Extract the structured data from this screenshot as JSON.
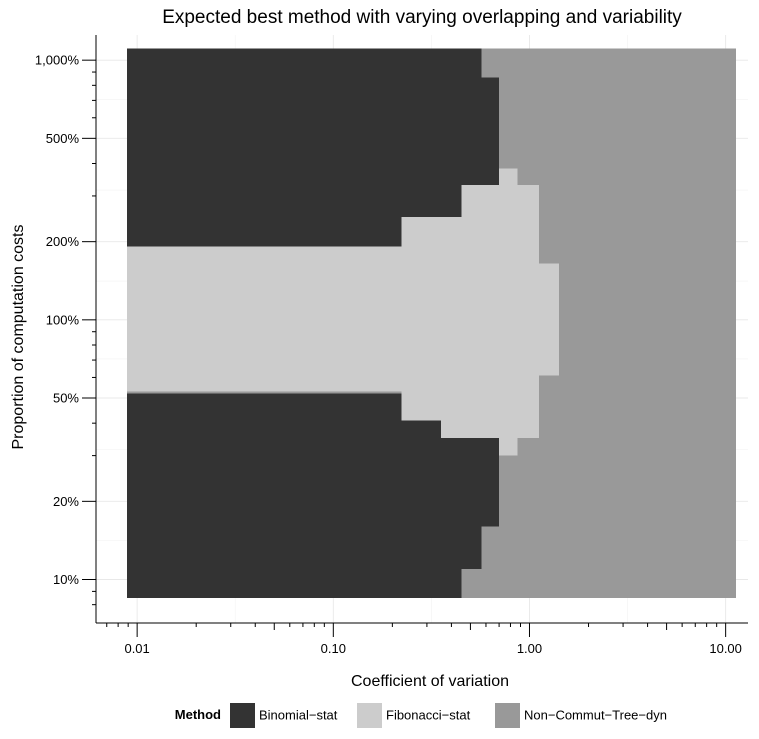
{
  "chart_data": {
    "type": "heatmap",
    "title": "Expected best method with varying overlapping and variability",
    "xlabel": "Coefficient of variation",
    "ylabel": "Proportion of computation costs",
    "x_scale": "log",
    "y_scale": "log",
    "xlim": [
      0.00617,
      13.0
    ],
    "ylim": [
      6.8,
      1250
    ],
    "x_ticks": [
      {
        "value": 0.01,
        "label": "0.01"
      },
      {
        "value": 0.1,
        "label": "0.10"
      },
      {
        "value": 1,
        "label": "1.00"
      },
      {
        "value": 10,
        "label": "10.00"
      }
    ],
    "y_ticks": [
      {
        "value": 10,
        "label": "10%"
      },
      {
        "value": 20,
        "label": "20%"
      },
      {
        "value": 50,
        "label": "50%"
      },
      {
        "value": 100,
        "label": "100%"
      },
      {
        "value": 200,
        "label": "200%"
      },
      {
        "value": 500,
        "label": "500%"
      },
      {
        "value": 1000,
        "label": "1,000%"
      }
    ],
    "grid": true,
    "legend": {
      "title": "Method",
      "position": "bottom",
      "entries": [
        {
          "name": "Binomial−stat",
          "color": "#333333"
        },
        {
          "name": "Fibonacci−stat",
          "color": "#cccccc"
        },
        {
          "name": "Non−Commut−Tree−dyn",
          "color": "#999999"
        }
      ]
    },
    "regions": [
      {
        "method": "Binomial−stat",
        "x0": 0.0089,
        "x1": 0.57,
        "y0": 858,
        "y1": 1110
      },
      {
        "method": "Binomial−stat",
        "x0": 0.0089,
        "x1": 0.7,
        "y0": 286,
        "y1": 858
      },
      {
        "method": "Binomial−stat",
        "x0": 0.0089,
        "x1": 0.45,
        "y0": 249,
        "y1": 286
      },
      {
        "method": "Binomial−stat",
        "x0": 0.0089,
        "x1": 0.223,
        "y0": 192,
        "y1": 249
      },
      {
        "method": "Fibonacci−stat",
        "x0": 0.7,
        "x1": 0.87,
        "y0": 330,
        "y1": 383
      },
      {
        "method": "Fibonacci−stat",
        "x0": 0.45,
        "x1": 1.12,
        "y0": 249,
        "y1": 330
      },
      {
        "method": "Fibonacci−stat",
        "x0": 0.223,
        "x1": 1.12,
        "y0": 192,
        "y1": 249
      },
      {
        "method": "Fibonacci−stat",
        "x0": 0.0089,
        "x1": 1.12,
        "y0": 165,
        "y1": 192
      },
      {
        "method": "Fibonacci−stat",
        "x0": 0.0089,
        "x1": 1.41,
        "y0": 61,
        "y1": 165
      },
      {
        "method": "Fibonacci−stat",
        "x0": 0.0089,
        "x1": 1.12,
        "y0": 53,
        "y1": 61
      },
      {
        "method": "Fibonacci−stat",
        "x0": 0.223,
        "x1": 1.12,
        "y0": 41,
        "y1": 53
      },
      {
        "method": "Fibonacci−stat",
        "x0": 0.354,
        "x1": 1.12,
        "y0": 35,
        "y1": 41
      },
      {
        "method": "Fibonacci−stat",
        "x0": 0.7,
        "x1": 0.87,
        "y0": 30,
        "y1": 35
      },
      {
        "method": "Binomial−stat",
        "x0": 0.0089,
        "x1": 0.223,
        "y0": 41,
        "y1": 52
      },
      {
        "method": "Binomial−stat",
        "x0": 0.0089,
        "x1": 0.354,
        "y0": 35,
        "y1": 41
      },
      {
        "method": "Binomial−stat",
        "x0": 0.0089,
        "x1": 0.7,
        "y0": 16,
        "y1": 35
      },
      {
        "method": "Binomial−stat",
        "x0": 0.0089,
        "x1": 0.57,
        "y0": 11,
        "y1": 16
      },
      {
        "method": "Binomial−stat",
        "x0": 0.0089,
        "x1": 0.45,
        "y0": 8.5,
        "y1": 11
      }
    ],
    "background_region": {
      "method": "Non−Commut−Tree−dyn",
      "x0": 0.0089,
      "x1": 11.3,
      "y0": 8.5,
      "y1": 1110
    }
  }
}
